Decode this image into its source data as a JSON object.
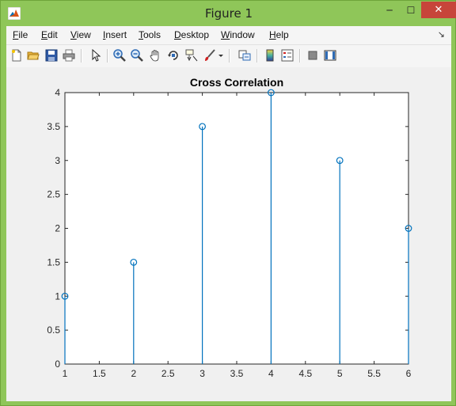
{
  "window": {
    "title": "Figure 1",
    "minimize": "─",
    "maximize": "☐",
    "close": "✕"
  },
  "menu": [
    {
      "key": "F",
      "rest": "ile"
    },
    {
      "key": "E",
      "rest": "dit"
    },
    {
      "key": "V",
      "rest": "iew"
    },
    {
      "key": "I",
      "rest": "nsert"
    },
    {
      "key": "T",
      "rest": "ools"
    },
    {
      "key": "D",
      "rest": "esktop"
    },
    {
      "key": "W",
      "rest": "indow"
    },
    {
      "key": "H",
      "rest": "elp"
    }
  ],
  "toolbar": [
    "new-figure-icon",
    "open-file-icon",
    "save-icon",
    "print-icon",
    "edit-plot-arrow-icon",
    "zoom-in-icon",
    "zoom-out-icon",
    "pan-hand-icon",
    "rotate-3d-icon",
    "data-cursor-icon",
    "brush-icon",
    "brush-dropdown-icon",
    "link-plot-icon",
    "insert-colorbar-icon",
    "insert-legend-icon",
    "hide-plot-tools-icon",
    "show-plot-tools-icon"
  ],
  "chart_data": {
    "type": "stem",
    "title": "Cross Correlation",
    "xlabel": "",
    "ylabel": "",
    "x": [
      1,
      2,
      3,
      4,
      5,
      6
    ],
    "y": [
      1,
      1.5,
      3.5,
      4,
      3,
      2
    ],
    "xlim": [
      1,
      6
    ],
    "ylim": [
      0,
      4
    ],
    "xticks": [
      "1",
      "1.5",
      "2",
      "2.5",
      "3",
      "3.5",
      "4",
      "4.5",
      "5",
      "5.5",
      "6"
    ],
    "yticks": [
      "0",
      "0.5",
      "1",
      "1.5",
      "2",
      "2.5",
      "3",
      "3.5",
      "4"
    ],
    "color": "#0072bd",
    "marker": "circle",
    "grid": false
  }
}
